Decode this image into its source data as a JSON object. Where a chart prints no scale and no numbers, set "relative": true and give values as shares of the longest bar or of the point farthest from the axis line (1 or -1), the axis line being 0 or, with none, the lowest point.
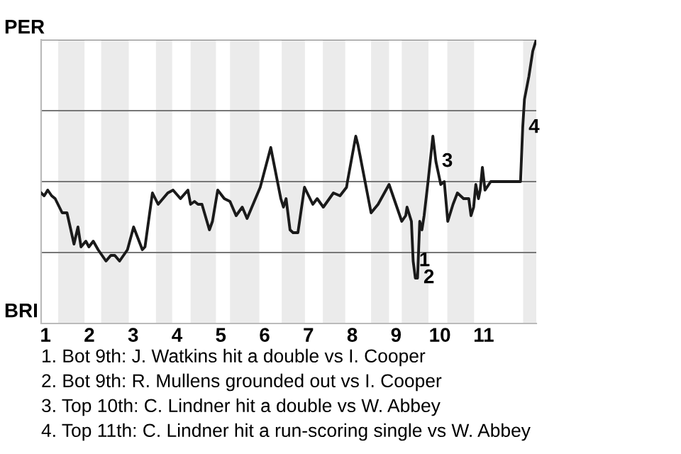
{
  "chart_data": {
    "type": "line",
    "relative": true,
    "xlim": [
      0.9,
      12.2
    ],
    "xticks": [
      1,
      2,
      3,
      4,
      5,
      6,
      7,
      8,
      9,
      10,
      11
    ],
    "marker": "none",
    "line_style": "solid",
    "series": [
      {
        "color": "#1a1a1a",
        "x": [
          0.9,
          0.97,
          1.05,
          1.14,
          1.22,
          1.38,
          1.49,
          1.65,
          1.74,
          1.81,
          1.92,
          1.99,
          2.09,
          2.2,
          2.38,
          2.49,
          2.58,
          2.69,
          2.87,
          3.01,
          3.21,
          3.27,
          3.44,
          3.57,
          3.79,
          3.91,
          4.08,
          4.25,
          4.31,
          4.4,
          4.48,
          4.57,
          4.74,
          4.81,
          4.93,
          5.08,
          5.21,
          5.35,
          5.49,
          5.6,
          5.9,
          6.14,
          6.37,
          6.43,
          6.49,
          6.58,
          6.65,
          6.76,
          6.91,
          7.1,
          7.2,
          7.34,
          7.57,
          7.72,
          7.87,
          7.89,
          8.08,
          8.13,
          8.43,
          8.59,
          8.84,
          9.13,
          9.22,
          9.25,
          9.35,
          9.39,
          9.44,
          9.49,
          9.54,
          9.59,
          9.64,
          9.73,
          9.84,
          9.91,
          10.02,
          10.1,
          10.18,
          10.3,
          10.4,
          10.54,
          10.66,
          10.71,
          10.77,
          10.82,
          10.88,
          10.92,
          10.97,
          11.03,
          11.16,
          11.84,
          11.89,
          11.93,
          12.03,
          12.12,
          12.2
        ],
        "values": [
          0.46,
          0.45,
          0.47,
          0.45,
          0.44,
          0.39,
          0.39,
          0.28,
          0.34,
          0.27,
          0.29,
          0.27,
          0.29,
          0.26,
          0.22,
          0.24,
          0.24,
          0.22,
          0.26,
          0.34,
          0.26,
          0.27,
          0.46,
          0.42,
          0.46,
          0.47,
          0.44,
          0.47,
          0.42,
          0.43,
          0.42,
          0.42,
          0.33,
          0.36,
          0.47,
          0.44,
          0.43,
          0.38,
          0.41,
          0.37,
          0.48,
          0.62,
          0.44,
          0.41,
          0.44,
          0.33,
          0.32,
          0.32,
          0.48,
          0.42,
          0.44,
          0.41,
          0.46,
          0.45,
          0.48,
          0.5,
          0.66,
          0.63,
          0.39,
          0.42,
          0.49,
          0.36,
          0.38,
          0.41,
          0.36,
          0.22,
          0.16,
          0.16,
          0.36,
          0.33,
          0.38,
          0.5,
          0.66,
          0.57,
          0.49,
          0.5,
          0.36,
          0.42,
          0.46,
          0.44,
          0.44,
          0.38,
          0.41,
          0.49,
          0.44,
          0.47,
          0.55,
          0.47,
          0.5,
          0.5,
          0.69,
          0.79,
          0.87,
          0.96,
          1.0
        ]
      }
    ],
    "ref_lines": [
      {
        "axis": "y",
        "value": 0.25,
        "color": "#777777"
      },
      {
        "axis": "y",
        "value": 0.5,
        "color": "#777777"
      },
      {
        "axis": "y",
        "value": 0.75,
        "color": "#777777"
      },
      {
        "axis": "y",
        "value": 1,
        "color": "#777777"
      }
    ],
    "bands": [
      {
        "axis": "x",
        "from": 1.29,
        "to": 1.89,
        "color": "#ebebeb"
      },
      {
        "axis": "x",
        "from": 2.27,
        "to": 2.9,
        "color": "#ebebeb"
      },
      {
        "axis": "x",
        "from": 3.52,
        "to": 3.89,
        "color": "#ebebeb"
      },
      {
        "axis": "x",
        "from": 4.31,
        "to": 4.89,
        "color": "#ebebeb"
      },
      {
        "axis": "x",
        "from": 5.21,
        "to": 5.88,
        "color": "#ebebeb"
      },
      {
        "axis": "x",
        "from": 6.39,
        "to": 6.92,
        "color": "#ebebeb"
      },
      {
        "axis": "x",
        "from": 7.33,
        "to": 7.84,
        "color": "#ebebeb"
      },
      {
        "axis": "x",
        "from": 8.43,
        "to": 8.84,
        "color": "#ebebeb"
      },
      {
        "axis": "x",
        "from": 9.13,
        "to": 9.74,
        "color": "#ebebeb"
      },
      {
        "axis": "x",
        "from": 10.17,
        "to": 10.78,
        "color": "#ebebeb"
      },
      {
        "axis": "x",
        "from": 11.9,
        "to": 12.2,
        "color": "#ebebeb"
      }
    ],
    "annotations": [
      "PER",
      "BRI",
      {
        "text": "1",
        "x": 9.39,
        "y": 0.22
      },
      {
        "text": "2",
        "x": 9.49,
        "y": 0.16
      },
      {
        "text": "3",
        "x": 9.91,
        "y": 0.57
      },
      {
        "text": "4",
        "x": 11.89,
        "y": 0.69
      },
      "1. Bot 9th: J. Watkins hit a double vs I. Cooper",
      "2. Bot 9th: R. Mullens grounded out vs I. Cooper",
      "3. Top 10th: C. Lindner hit a double vs W. Abbey",
      "4. Top 11th: C. Lindner hit a run-scoring single vs W. Abbey"
    ]
  }
}
